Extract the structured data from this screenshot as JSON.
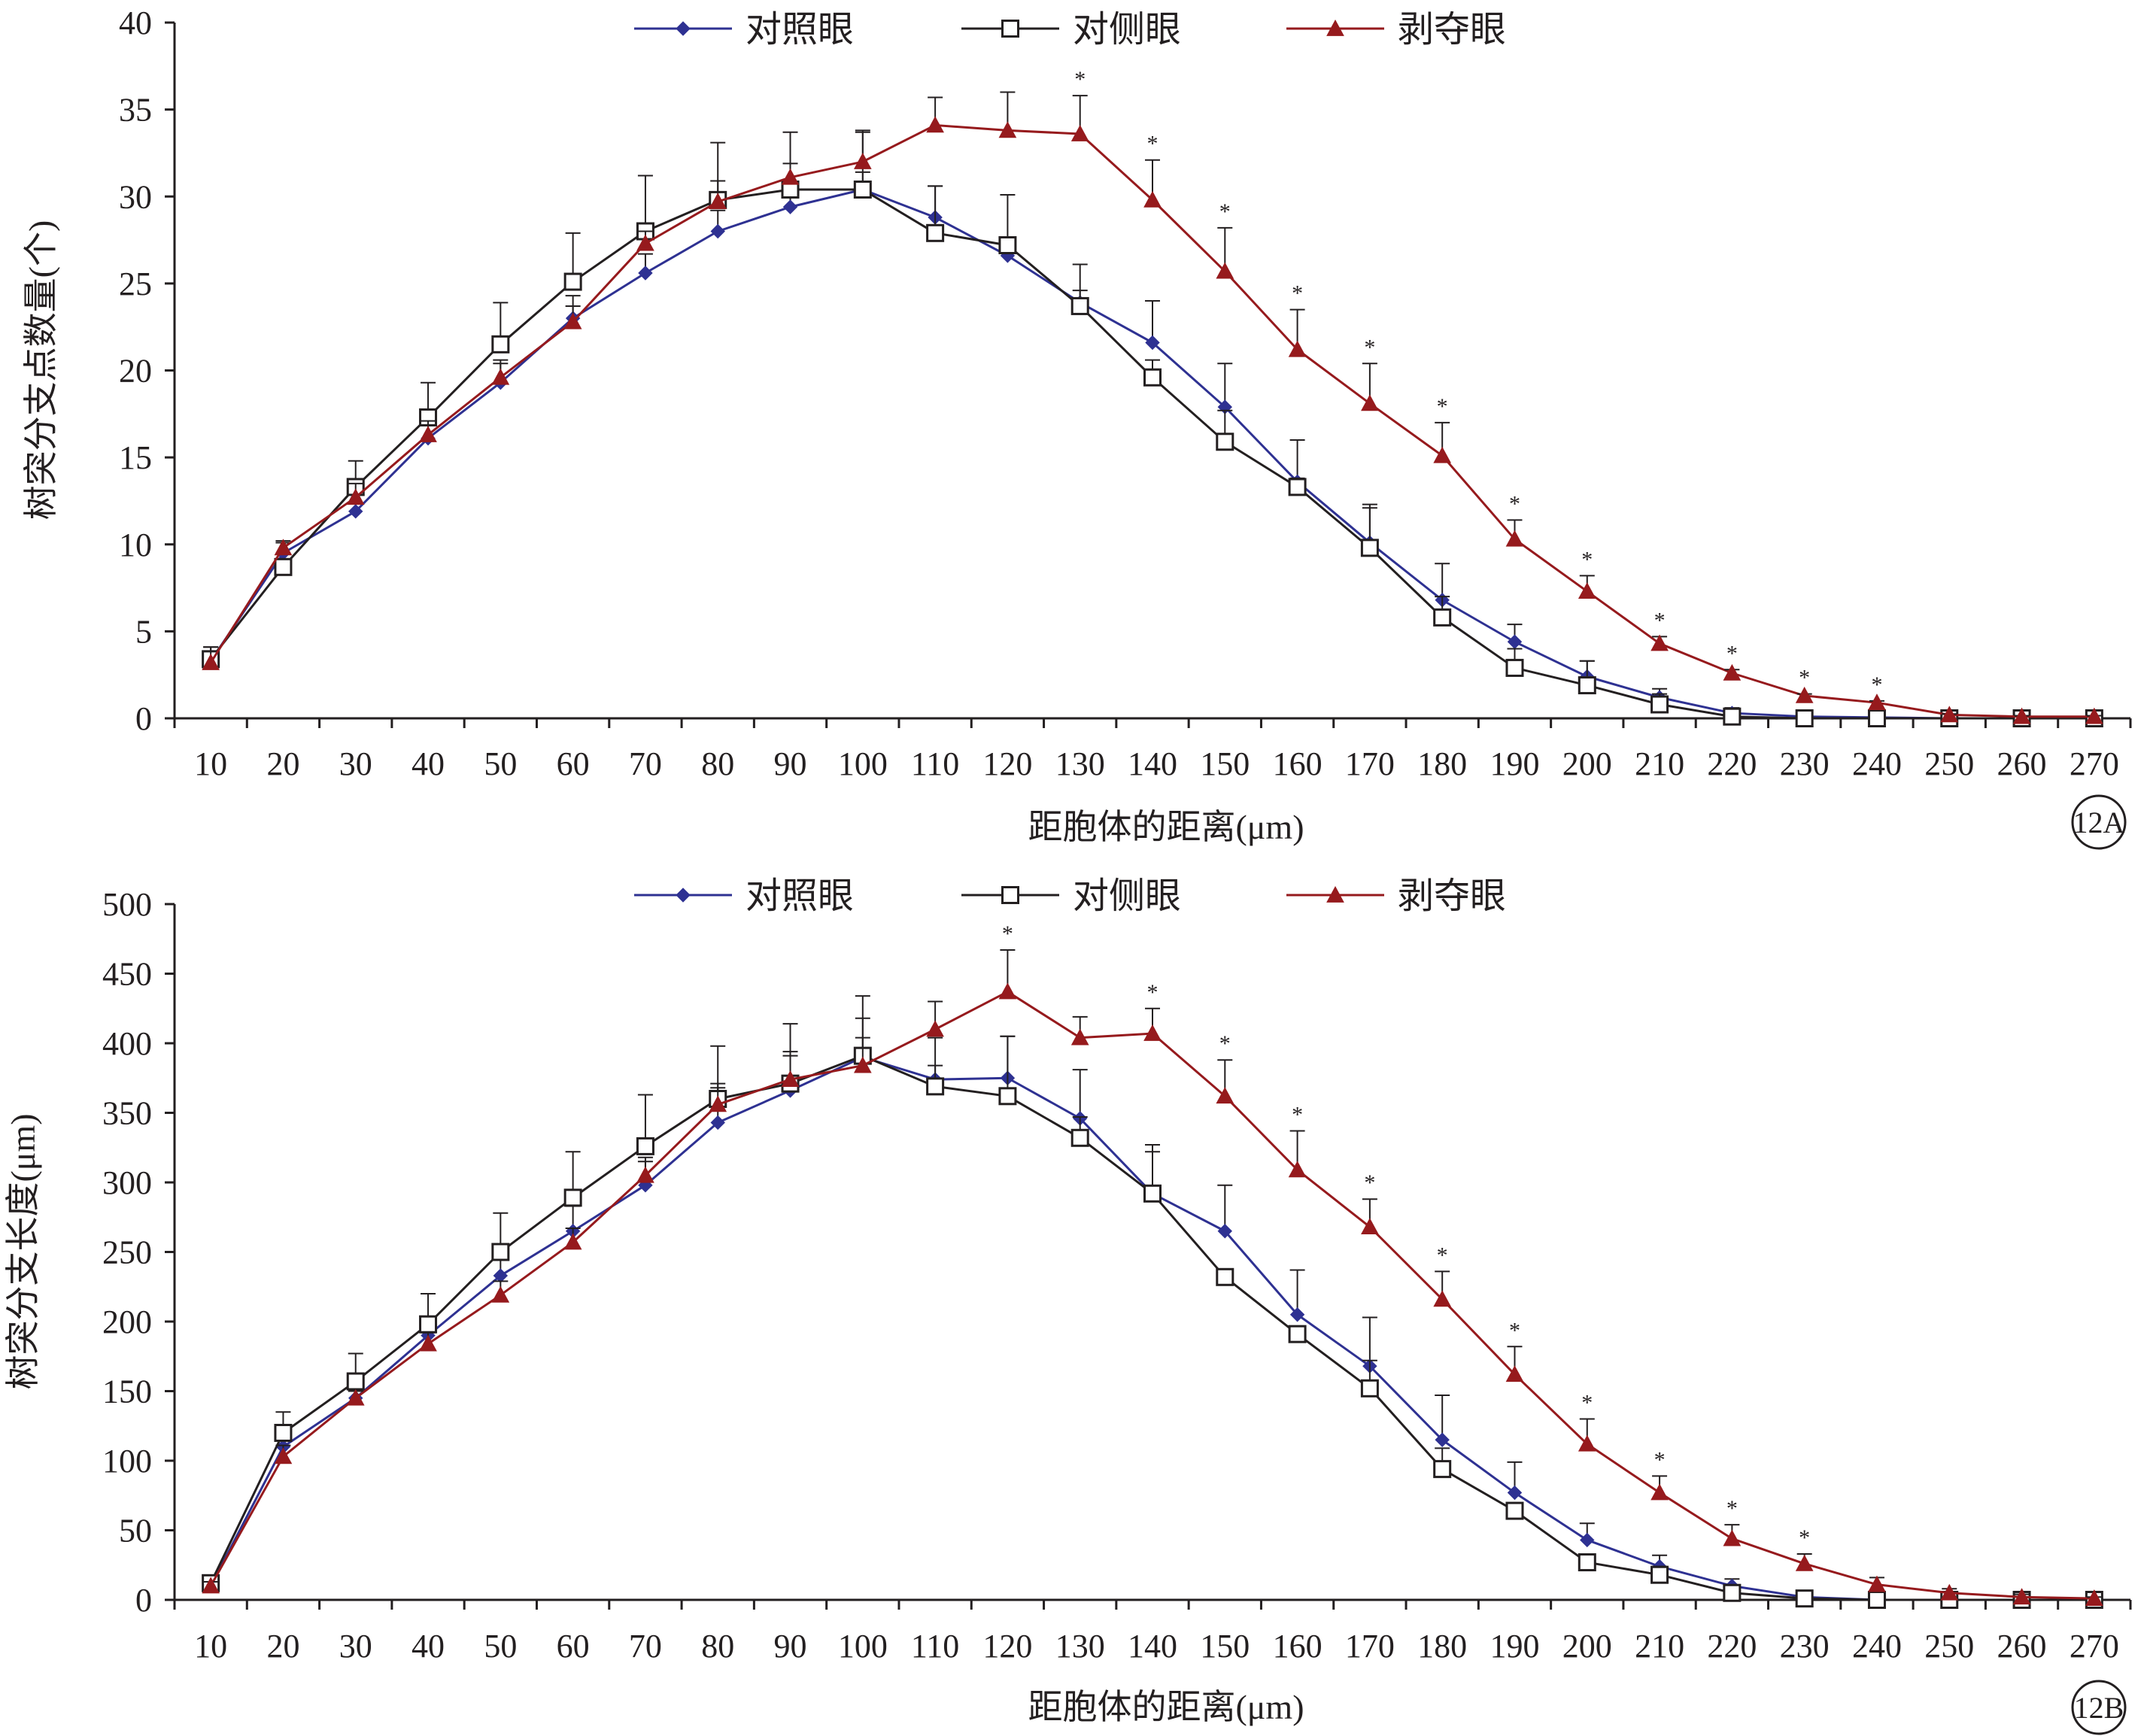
{
  "chart_data": [
    {
      "type": "line",
      "panel_label": "12A",
      "title": "",
      "xlabel": "距胞体的距离(μm)",
      "ylabel": "树突分支点数量(个)",
      "x": [
        10,
        20,
        30,
        40,
        50,
        60,
        70,
        80,
        90,
        100,
        110,
        120,
        130,
        140,
        150,
        160,
        170,
        180,
        190,
        200,
        210,
        220,
        230,
        240,
        250,
        260,
        270
      ],
      "xlim": [
        10,
        270
      ],
      "ylim": [
        0,
        40
      ],
      "yticks": [
        0,
        5,
        10,
        15,
        20,
        25,
        30,
        35,
        40
      ],
      "grid": false,
      "legend_position": "top",
      "series": [
        {
          "name": "对照眼",
          "color": "#2e3192",
          "marker": "diamond",
          "values": [
            3.3,
            9.5,
            11.9,
            16.1,
            19.3,
            23.0,
            25.6,
            28.0,
            29.4,
            30.4,
            28.8,
            26.6,
            23.9,
            21.6,
            17.9,
            13.6,
            10.1,
            6.8,
            4.4,
            2.4,
            1.2,
            0.3,
            0.1,
            0.05,
            0,
            0,
            0
          ],
          "errors": [
            0.8,
            0.6,
            1.0,
            1.0,
            1.1,
            1.3,
            1.1,
            1.2,
            1.1,
            1.0,
            1.8,
            0.8,
            0.7,
            2.4,
            2.5,
            2.4,
            2.0,
            2.1,
            1.0,
            0.9,
            0.5,
            0.3,
            0.1,
            0.05,
            0,
            0,
            0
          ]
        },
        {
          "name": "对侧眼",
          "color": "#231f20",
          "marker": "square",
          "values": [
            3.4,
            8.7,
            13.3,
            17.3,
            21.5,
            25.1,
            28.0,
            29.8,
            30.4,
            30.4,
            27.9,
            27.2,
            23.7,
            19.6,
            15.9,
            13.3,
            9.8,
            5.8,
            2.9,
            1.9,
            0.8,
            0.1,
            0,
            0,
            0,
            0,
            0
          ],
          "errors": [
            0.4,
            0.4,
            1.5,
            2.0,
            2.4,
            2.8,
            3.2,
            3.3,
            1.5,
            3.3,
            2.7,
            2.9,
            2.4,
            1.0,
            1.8,
            0.5,
            2.5,
            1.2,
            1.1,
            1.4,
            0.6,
            0.4,
            0.3,
            0.2,
            0,
            0,
            0
          ]
        },
        {
          "name": "剥夺眼",
          "color": "#961a1d",
          "marker": "triangle",
          "values": [
            3.2,
            9.8,
            12.7,
            16.3,
            19.6,
            22.8,
            27.3,
            29.7,
            31.1,
            32.0,
            34.1,
            33.8,
            33.6,
            29.8,
            25.7,
            21.2,
            18.1,
            15.1,
            10.3,
            7.3,
            4.3,
            2.6,
            1.3,
            0.9,
            0.2,
            0.1,
            0.1
          ],
          "errors": [
            0.9,
            0.4,
            0.8,
            0.8,
            1.0,
            0.9,
            0.7,
            1.2,
            2.6,
            1.8,
            1.6,
            2.2,
            2.2,
            2.3,
            2.5,
            2.3,
            2.3,
            1.9,
            1.1,
            0.9,
            0.4,
            0.2,
            0.1,
            0.1,
            0.05,
            0.05,
            0.05
          ]
        }
      ],
      "significance": [
        130,
        140,
        150,
        160,
        170,
        180,
        190,
        200,
        210,
        220,
        230,
        240
      ],
      "significance_mark": "*"
    },
    {
      "type": "line",
      "panel_label": "12B",
      "title": "",
      "xlabel": "距胞体的距离(μm)",
      "ylabel": "树突分支长度(μm)",
      "x": [
        10,
        20,
        30,
        40,
        50,
        60,
        70,
        80,
        90,
        100,
        110,
        120,
        130,
        140,
        150,
        160,
        170,
        180,
        190,
        200,
        210,
        220,
        230,
        240,
        250,
        260,
        270
      ],
      "xlim": [
        10,
        270
      ],
      "ylim": [
        0,
        500
      ],
      "yticks": [
        0,
        50,
        100,
        150,
        200,
        250,
        300,
        350,
        400,
        450,
        500
      ],
      "grid": false,
      "legend_position": "top",
      "series": [
        {
          "name": "对照眼",
          "color": "#2e3192",
          "marker": "diamond",
          "values": [
            10,
            110,
            145,
            190,
            233,
            265,
            298,
            343,
            366,
            390,
            374,
            375,
            346,
            292,
            265,
            205,
            168,
            115,
            77,
            43,
            24,
            10,
            2,
            0,
            0,
            0,
            0
          ],
          "errors": [
            3,
            8,
            10,
            12,
            15,
            18,
            20,
            25,
            25,
            28,
            30,
            30,
            35,
            30,
            33,
            32,
            35,
            32,
            22,
            12,
            8,
            5,
            2,
            0,
            0,
            0,
            0
          ]
        },
        {
          "name": "对侧眼",
          "color": "#231f20",
          "marker": "square",
          "values": [
            12,
            120,
            157,
            198,
            250,
            289,
            326,
            360,
            371,
            391,
            369,
            362,
            332,
            292,
            232,
            191,
            152,
            94,
            64,
            27,
            18,
            5,
            1,
            0,
            0,
            0,
            0
          ],
          "errors": [
            3,
            15,
            20,
            22,
            28,
            33,
            37,
            38,
            43,
            43,
            15,
            43,
            15,
            35,
            5,
            3,
            20,
            15,
            5,
            3,
            6,
            3,
            2,
            0,
            0,
            0,
            0
          ]
        },
        {
          "name": "剥夺眼",
          "color": "#961a1d",
          "marker": "triangle",
          "values": [
            10,
            103,
            145,
            184,
            219,
            257,
            305,
            356,
            374,
            384,
            410,
            437,
            404,
            407,
            362,
            309,
            268,
            216,
            162,
            112,
            77,
            44,
            26,
            11,
            5,
            2,
            1
          ],
          "errors": [
            3,
            8,
            5,
            8,
            10,
            10,
            10,
            15,
            20,
            20,
            20,
            30,
            15,
            18,
            26,
            28,
            20,
            20,
            20,
            18,
            12,
            10,
            7,
            5,
            3,
            2,
            1
          ]
        }
      ],
      "significance": [
        120,
        140,
        150,
        160,
        170,
        180,
        190,
        200,
        210,
        220,
        230
      ],
      "significance_mark": "*"
    }
  ]
}
